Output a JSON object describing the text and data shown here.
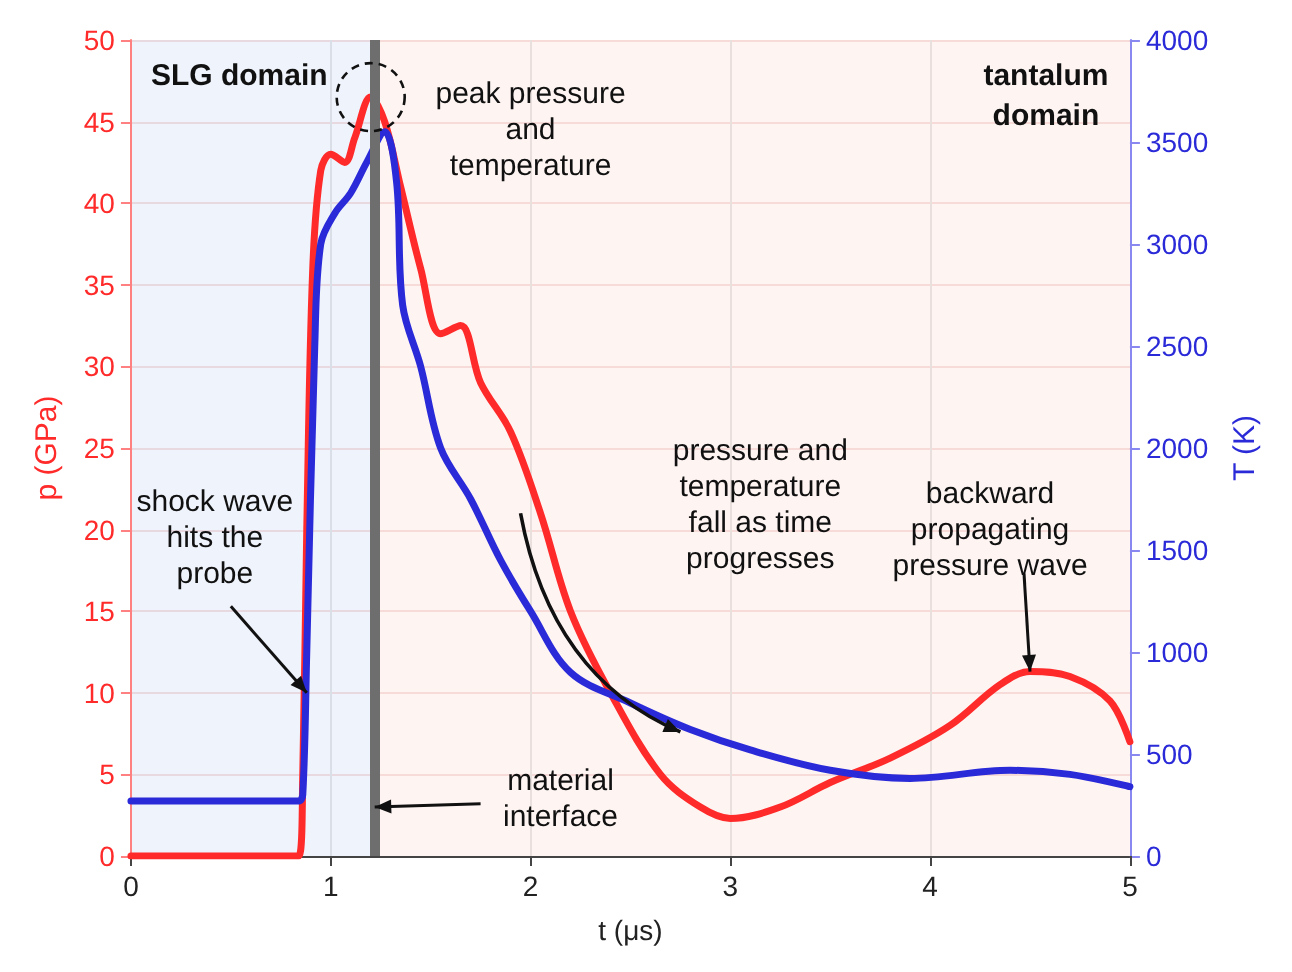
{
  "chart_data": {
    "type": "line",
    "xlabel": "t (μs)",
    "ylabel": "p (GPa)",
    "y2label": "T (K)",
    "xlim": [
      0,
      5
    ],
    "xticks": [
      0,
      1,
      2,
      3,
      4,
      5
    ],
    "ylim": [
      0,
      50
    ],
    "yticks": [
      0,
      5,
      10,
      15,
      20,
      25,
      30,
      35,
      40,
      45,
      50
    ],
    "y2lim": [
      0,
      4000
    ],
    "y2ticks": [
      0,
      500,
      1000,
      1500,
      2000,
      2500,
      3000,
      3500,
      4000
    ],
    "grid": true,
    "line_style": "solid",
    "marker": "none",
    "series": [
      {
        "color": "#ff2a2a",
        "x": [
          0,
          0.84,
          0.86,
          0.88,
          0.91,
          0.95,
          1.0,
          1.07,
          1.12,
          1.2,
          1.27,
          1.35,
          1.45,
          1.55,
          1.65,
          1.75,
          1.9,
          2.05,
          2.2,
          2.4,
          2.65,
          2.85,
          3.0,
          3.25,
          3.5,
          3.8,
          4.1,
          4.35,
          4.5,
          4.7,
          4.9,
          5.0
        ],
        "values": [
          0,
          0,
          5,
          20,
          36,
          42,
          43,
          42.5,
          44,
          46.5,
          45,
          41,
          36,
          32,
          32.5,
          29,
          26,
          21,
          15,
          10,
          5,
          3,
          2.3,
          3,
          4.5,
          6,
          8,
          10.5,
          11.3,
          11,
          9.5,
          7
        ]
      },
      {
        "color": "#2a2ad8",
        "axis": "y2",
        "x": [
          0,
          0.84,
          0.86,
          0.88,
          0.92,
          0.95,
          1.02,
          1.1,
          1.18,
          1.27,
          1.33,
          1.36,
          1.45,
          1.55,
          1.7,
          1.85,
          2.0,
          2.2,
          2.5,
          2.8,
          3.1,
          3.5,
          3.9,
          4.4,
          4.7,
          5.0
        ],
        "values": [
          270,
          270,
          300,
          1000,
          2500,
          3000,
          3150,
          3250,
          3400,
          3550,
          3300,
          2700,
          2400,
          2000,
          1750,
          1450,
          1200,
          900,
          750,
          620,
          520,
          420,
          380,
          420,
          400,
          340
        ]
      }
    ],
    "bands": [
      {
        "axis": "x",
        "from": 0,
        "to": 1.22,
        "label": "SLG domain",
        "color": "#e8eef9"
      },
      {
        "axis": "x",
        "from": 1.22,
        "to": 5,
        "label": "tantalum\ndomain",
        "color": "#fdf1ee"
      }
    ],
    "ref_lines": [
      {
        "axis": "x",
        "value": 1.22,
        "color": "#6e6e6e"
      }
    ],
    "annotations": [
      {
        "text": "peak pressure\nand\ntemperature",
        "x": 1.2,
        "y": 46.5
      },
      {
        "text": "shock wave\nhits the\nprobe",
        "x": 0.88,
        "y": 10
      },
      {
        "text": "material\ninterface",
        "x": 1.22,
        "y": 3
      },
      "pressure and\ntemperature\nfall as time\nprogresses",
      {
        "text": "backward\npropagating\npressure wave",
        "x": 4.5,
        "y": 11.3
      }
    ]
  }
}
